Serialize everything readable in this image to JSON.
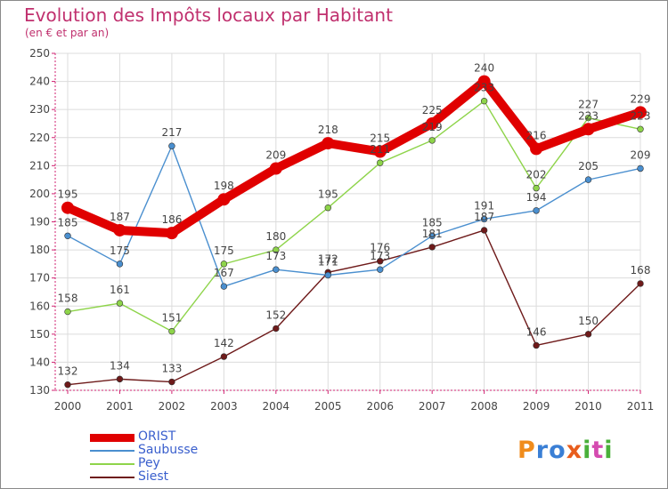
{
  "header": {
    "title": "Evolution des Impôts locaux par Habitant",
    "subtitle": "(en € et par an)"
  },
  "logo": {
    "text": "Proxiti",
    "letters": [
      "P",
      "r",
      "o",
      "x",
      "i",
      "t",
      "i"
    ],
    "colors": [
      "#f08c1c",
      "#3a7fd5",
      "#3a7fd5",
      "#e85d1c",
      "#4ab03a",
      "#d54bb0",
      "#4ab03a"
    ]
  },
  "chart_data": {
    "type": "line",
    "x": [
      "2000",
      "2001",
      "2002",
      "2003",
      "2004",
      "2005",
      "2006",
      "2007",
      "2008",
      "2009",
      "2010",
      "2011"
    ],
    "ylim": [
      130,
      250
    ],
    "yticks": [
      130,
      140,
      150,
      160,
      170,
      180,
      190,
      200,
      210,
      220,
      230,
      240,
      250
    ],
    "grid": true,
    "legend_position": "bottom-left",
    "series": [
      {
        "name": "ORIST",
        "color": "#e00000",
        "values": [
          195,
          187,
          186,
          198,
          209,
          218,
          215,
          225,
          240,
          216,
          223,
          229
        ]
      },
      {
        "name": "Saubusse",
        "color": "#4a8fcf",
        "values": [
          185,
          175,
          217,
          167,
          173,
          171,
          173,
          185,
          191,
          194,
          205,
          209
        ]
      },
      {
        "name": "Pey",
        "color": "#8ed44a",
        "values": [
          158,
          161,
          151,
          175,
          180,
          195,
          211,
          219,
          233,
          202,
          227,
          223
        ]
      },
      {
        "name": "Siest",
        "color": "#6e1a1a",
        "values": [
          132,
          134,
          133,
          142,
          152,
          172,
          176,
          181,
          187,
          146,
          150,
          168
        ]
      }
    ]
  }
}
